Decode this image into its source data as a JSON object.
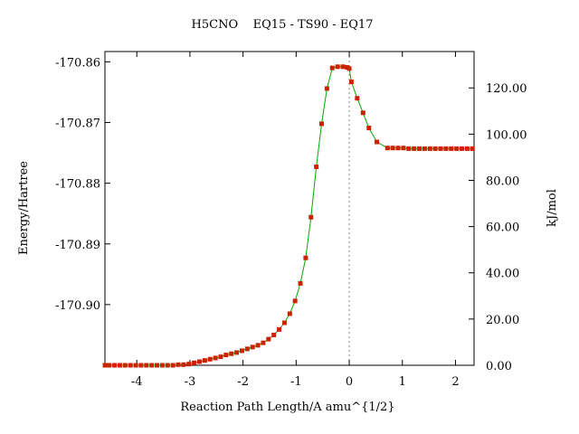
{
  "chart_data": {
    "type": "line",
    "title": "H5CNO    EQ15 - TS90 - EQ17",
    "xlabel": "Reaction Path Length/A amu^{1/2}",
    "ylabel_left": "Energy/Hartree",
    "ylabel_right": "kJ/mol",
    "xlim": [
      -4.6,
      2.35
    ],
    "ylim": [
      -170.91,
      -170.8583
    ],
    "right_axis": {
      "units": "kJ/mol",
      "zero_at_hartree": -170.91,
      "hartree_to_kj": 2625.5
    },
    "x_ticks": [
      -4,
      -3,
      -2,
      -1,
      0,
      1,
      2
    ],
    "x_tick_labels": [
      "-4",
      "-3",
      "-2",
      "-1",
      "0",
      "1",
      "2"
    ],
    "y_left_ticks": [
      -170.86,
      -170.87,
      -170.88,
      -170.89,
      -170.9
    ],
    "y_left_tick_labels": [
      "-170.86",
      "-170.87",
      "-170.88",
      "-170.89",
      "-170.90"
    ],
    "y_right_ticks": [
      0,
      20,
      40,
      60,
      80,
      100,
      120
    ],
    "y_right_tick_labels": [
      "0.00",
      "20.00",
      "40.00",
      "60.00",
      "80.00",
      "100.00",
      "120.00"
    ],
    "ts_marker_x": 0,
    "grid": false,
    "line_color": "#00aa00",
    "marker_color": "#cc2200",
    "series": [
      {
        "x": [
          -4.6,
          -4.52,
          -4.42,
          -4.32,
          -4.22,
          -4.12,
          -4.02,
          -3.92,
          -3.82,
          -3.72,
          -3.62,
          -3.52,
          -3.42,
          -3.32,
          -3.22,
          -3.12,
          -3.02,
          -2.92,
          -2.82,
          -2.72,
          -2.62,
          -2.52,
          -2.42,
          -2.32,
          -2.22,
          -2.12,
          -2.02,
          -1.92,
          -1.82,
          -1.72,
          -1.62,
          -1.52,
          -1.42,
          -1.32,
          -1.22,
          -1.12,
          -1.02,
          -0.92,
          -0.82,
          -0.72,
          -0.62,
          -0.52,
          -0.42,
          -0.32,
          -0.22,
          -0.12,
          -0.04,
          0.0,
          0.04,
          0.15,
          0.26,
          0.37,
          0.52,
          0.72,
          0.82,
          0.92,
          1.02,
          1.12,
          1.22,
          1.32,
          1.42,
          1.52,
          1.62,
          1.72,
          1.82,
          1.92,
          2.02,
          2.12,
          2.22,
          2.32
        ],
        "y": [
          -170.91,
          -170.91,
          -170.91,
          -170.91,
          -170.91,
          -170.91,
          -170.91,
          -170.91,
          -170.91,
          -170.91,
          -170.91,
          -170.91,
          -170.91,
          -170.91,
          -170.9099,
          -170.9099,
          -170.9098,
          -170.9096,
          -170.9094,
          -170.9092,
          -170.909,
          -170.9088,
          -170.9086,
          -170.9083,
          -170.9081,
          -170.9079,
          -170.9076,
          -170.9073,
          -170.907,
          -170.9067,
          -170.9063,
          -170.9057,
          -170.905,
          -170.9041,
          -170.903,
          -170.9015,
          -170.8994,
          -170.8965,
          -170.8923,
          -170.8856,
          -170.8773,
          -170.8702,
          -170.8644,
          -170.861,
          -170.8608,
          -170.8608,
          -170.8609,
          -170.8611,
          -170.8633,
          -170.866,
          -170.8684,
          -170.8709,
          -170.8732,
          -170.8742,
          -170.8742,
          -170.8742,
          -170.8742,
          -170.8743,
          -170.8743,
          -170.8743,
          -170.8743,
          -170.8743,
          -170.8743,
          -170.8743,
          -170.8743,
          -170.8743,
          -170.8743,
          -170.8743,
          -170.8743,
          -170.8743
        ]
      }
    ]
  }
}
